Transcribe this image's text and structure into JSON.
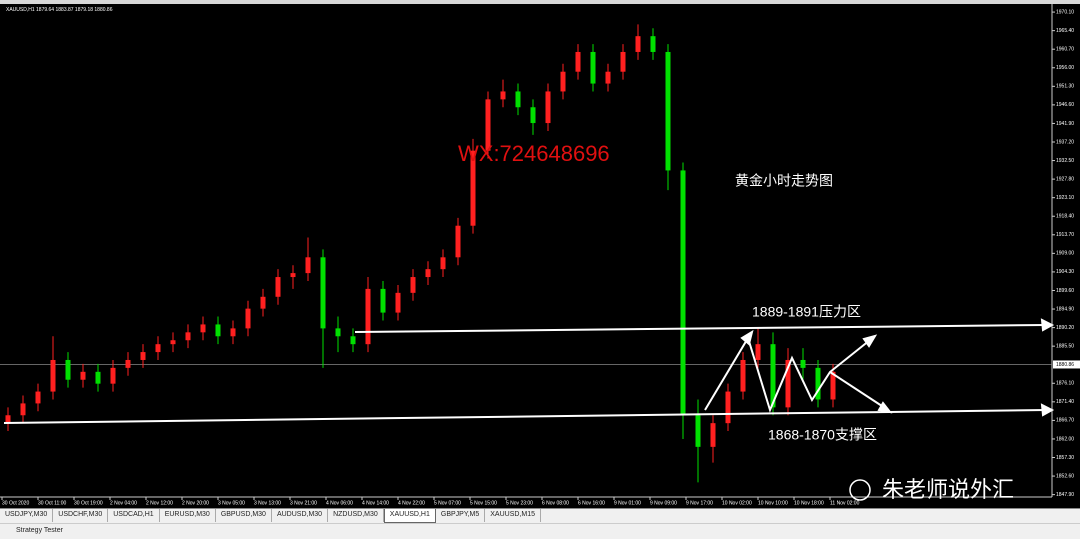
{
  "window": {
    "tabs": [
      "USDJPY,M30",
      "USDCHF,M30",
      "USDCAD,H1",
      "EURUSD,M30",
      "GBPUSD,M30",
      "AUDUSD,M30",
      "NZDUSD,M30",
      "XAUUSD,H1",
      "GBPJPY,M5",
      "XAUUSD,M15"
    ],
    "active_tab": 7,
    "status_bar": "Strategy Tester",
    "watermark": "朱老师说外汇"
  },
  "chart_data": {
    "type": "candlestick",
    "title": "XAUUSD,H1  1879.64 1883.87 1879.18 1880.86",
    "annotations": [
      "WX:724648696",
      "黄金小时走势图",
      "1889-1891压力区",
      "1868-1870支撑区"
    ],
    "up_color": "#ff2020",
    "down_color": "#00e000",
    "current_price": 1880.86,
    "ylim": [
      1847.3,
      1972.4
    ],
    "yticks": [
      {
        "value": 1970.1,
        "label": "1970.10"
      },
      {
        "value": 1965.4,
        "label": "1965.40"
      },
      {
        "value": 1960.7,
        "label": "1960.70"
      },
      {
        "value": 1956.0,
        "label": "1956.00"
      },
      {
        "value": 1951.3,
        "label": "1951.30"
      },
      {
        "value": 1946.6,
        "label": "1946.60"
      },
      {
        "value": 1941.9,
        "label": "1941.90"
      },
      {
        "value": 1937.2,
        "label": "1937.20"
      },
      {
        "value": 1932.5,
        "label": "1932.50"
      },
      {
        "value": 1927.8,
        "label": "1927.80"
      },
      {
        "value": 1923.1,
        "label": "1923.10"
      },
      {
        "value": 1918.4,
        "label": "1918.40"
      },
      {
        "value": 1913.7,
        "label": "1913.70"
      },
      {
        "value": 1909.0,
        "label": "1909.00"
      },
      {
        "value": 1904.3,
        "label": "1904.30"
      },
      {
        "value": 1899.6,
        "label": "1899.60"
      },
      {
        "value": 1894.9,
        "label": "1894.90"
      },
      {
        "value": 1890.2,
        "label": "1890.20"
      },
      {
        "value": 1885.5,
        "label": "1885.50"
      },
      {
        "value": 1876.1,
        "label": "1876.10"
      },
      {
        "value": 1871.4,
        "label": "1871.40"
      },
      {
        "value": 1866.7,
        "label": "1866.70"
      },
      {
        "value": 1862.0,
        "label": "1862.00"
      },
      {
        "value": 1857.3,
        "label": "1857.30"
      },
      {
        "value": 1852.6,
        "label": "1852.60"
      },
      {
        "value": 1847.9,
        "label": "1847.90"
      }
    ],
    "x_labels": [
      "30 Oct 2020",
      "30 Oct 11:00",
      "30 Oct 19:00",
      "2 Nov 04:00",
      "2 Nov 12:00",
      "2 Nov 20:00",
      "3 Nov 05:00",
      "3 Nov 13:00",
      "3 Nov 21:00",
      "4 Nov 06:00",
      "4 Nov 14:00",
      "4 Nov 22:00",
      "5 Nov 07:00",
      "5 Nov 15:00",
      "5 Nov 23:00",
      "6 Nov 08:00",
      "6 Nov 16:00",
      "9 Nov 01:00",
      "9 Nov 09:00",
      "9 Nov 17:00",
      "10 Nov 02:00",
      "10 Nov 10:00",
      "10 Nov 18:00",
      "11 Nov 02:00"
    ],
    "ohlc": [
      [
        1866,
        1870,
        1864,
        1868
      ],
      [
        1868,
        1873,
        1866,
        1871
      ],
      [
        1871,
        1876,
        1869,
        1874
      ],
      [
        1874,
        1888,
        1872,
        1882
      ],
      [
        1882,
        1884,
        1875,
        1877
      ],
      [
        1877,
        1881,
        1875,
        1879
      ],
      [
        1879,
        1881,
        1874,
        1876
      ],
      [
        1876,
        1882,
        1874,
        1880
      ],
      [
        1880,
        1884,
        1878,
        1882
      ],
      [
        1882,
        1886,
        1880,
        1884
      ],
      [
        1884,
        1888,
        1882,
        1886
      ],
      [
        1886,
        1889,
        1884,
        1887
      ],
      [
        1887,
        1891,
        1885,
        1889
      ],
      [
        1889,
        1893,
        1887,
        1891
      ],
      [
        1891,
        1893,
        1886,
        1888
      ],
      [
        1888,
        1892,
        1886,
        1890
      ],
      [
        1890,
        1897,
        1888,
        1895
      ],
      [
        1895,
        1900,
        1893,
        1898
      ],
      [
        1898,
        1905,
        1896,
        1903
      ],
      [
        1903,
        1906,
        1900,
        1904
      ],
      [
        1904,
        1913,
        1902,
        1908
      ],
      [
        1908,
        1910,
        1880,
        1890
      ],
      [
        1890,
        1893,
        1884,
        1888
      ],
      [
        1888,
        1890,
        1884,
        1886
      ],
      [
        1886,
        1903,
        1884,
        1900
      ],
      [
        1900,
        1902,
        1892,
        1894
      ],
      [
        1894,
        1901,
        1892,
        1899
      ],
      [
        1899,
        1905,
        1897,
        1903
      ],
      [
        1903,
        1907,
        1901,
        1905
      ],
      [
        1905,
        1910,
        1903,
        1908
      ],
      [
        1908,
        1918,
        1906,
        1916
      ],
      [
        1916,
        1938,
        1914,
        1935
      ],
      [
        1935,
        1950,
        1933,
        1948
      ],
      [
        1948,
        1953,
        1946,
        1950
      ],
      [
        1950,
        1952,
        1944,
        1946
      ],
      [
        1946,
        1948,
        1939,
        1942
      ],
      [
        1942,
        1952,
        1940,
        1950
      ],
      [
        1950,
        1957,
        1948,
        1955
      ],
      [
        1955,
        1962,
        1953,
        1960
      ],
      [
        1960,
        1962,
        1950,
        1952
      ],
      [
        1952,
        1957,
        1950,
        1955
      ],
      [
        1955,
        1962,
        1953,
        1960
      ],
      [
        1960,
        1967,
        1958,
        1964
      ],
      [
        1964,
        1966,
        1958,
        1960
      ],
      [
        1960,
        1962,
        1925,
        1930
      ],
      [
        1930,
        1932,
        1862,
        1868
      ],
      [
        1868,
        1872,
        1851,
        1860
      ],
      [
        1860,
        1868,
        1856,
        1866
      ],
      [
        1866,
        1876,
        1864,
        1874
      ],
      [
        1874,
        1884,
        1872,
        1882
      ],
      [
        1882,
        1890,
        1880,
        1886
      ],
      [
        1886,
        1889,
        1868,
        1870
      ],
      [
        1870,
        1885,
        1868,
        1882
      ],
      [
        1882,
        1885,
        1877,
        1880
      ],
      [
        1880,
        1882,
        1870,
        1872
      ],
      [
        1872,
        1881,
        1870,
        1879
      ]
    ]
  }
}
